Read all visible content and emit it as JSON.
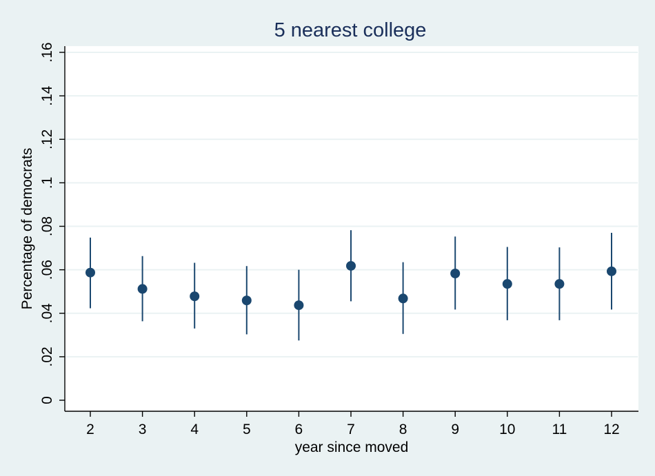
{
  "chart_data": {
    "type": "scatter",
    "title": "5 nearest college",
    "xlabel": "year since moved",
    "ylabel": "Percentage of democrats",
    "x": [
      2,
      3,
      4,
      5,
      6,
      7,
      8,
      9,
      10,
      11,
      12
    ],
    "y": [
      0.0587,
      0.0512,
      0.0478,
      0.0459,
      0.0437,
      0.0618,
      0.0468,
      0.0583,
      0.0535,
      0.0535,
      0.0593
    ],
    "ci_low": [
      0.0423,
      0.0363,
      0.033,
      0.0303,
      0.0275,
      0.0455,
      0.0305,
      0.0417,
      0.0368,
      0.0368,
      0.0417
    ],
    "ci_high": [
      0.0748,
      0.0663,
      0.0632,
      0.0617,
      0.06,
      0.0782,
      0.0635,
      0.0753,
      0.0705,
      0.0703,
      0.077
    ],
    "x_ticks": [
      "2",
      "3",
      "4",
      "5",
      "6",
      "7",
      "8",
      "9",
      "10",
      "11",
      "12"
    ],
    "y_ticks": [
      0,
      0.02,
      0.04,
      0.06,
      0.08,
      0.1,
      0.12,
      0.14,
      0.16
    ],
    "y_tick_labels": [
      "0",
      ".02",
      ".04",
      ".06",
      ".08",
      ".1",
      ".12",
      ".14",
      ".16"
    ],
    "ylim": [
      0,
      0.16
    ],
    "xlim": [
      2,
      12
    ],
    "grid": true,
    "colors": {
      "marker": "#1a476f",
      "title": "#1a2f5a",
      "background": "#eaf2f3",
      "plot_background": "#ffffff"
    }
  }
}
